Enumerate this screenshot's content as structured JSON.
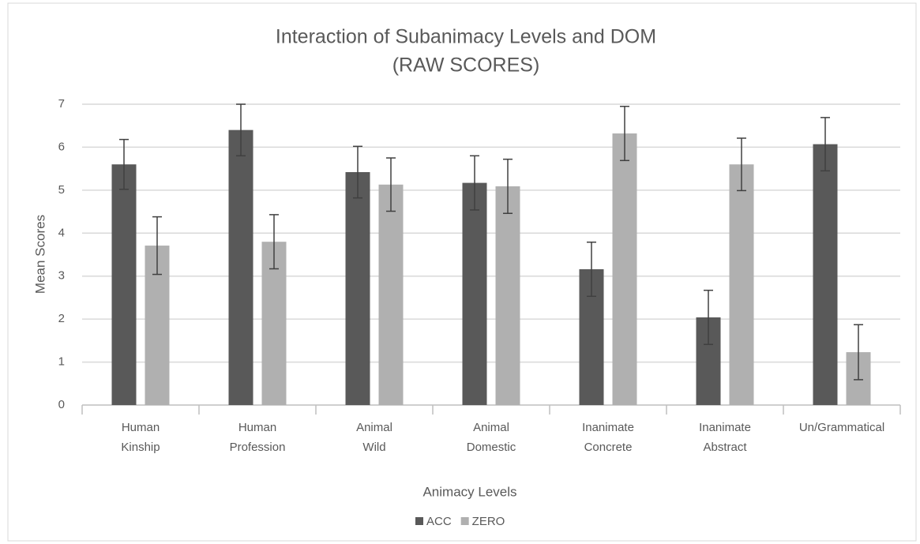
{
  "chart_data": {
    "type": "bar",
    "title": "Interaction of Subanimacy Levels and DOM",
    "subtitle": "(RAW SCORES)",
    "x_label": "Animacy Levels",
    "y_label": "Mean Scores",
    "categories": [
      [
        "Human",
        "Kinship"
      ],
      [
        "Human",
        "Profession"
      ],
      [
        "Animal",
        "Wild"
      ],
      [
        "Animal",
        "Domestic"
      ],
      [
        "Inanimate",
        "Concrete"
      ],
      [
        "Inanimate",
        "Abstract"
      ],
      [
        "Un/Grammatical"
      ]
    ],
    "series": [
      {
        "name": "ACC",
        "color": "#595959",
        "values": [
          5.6,
          6.4,
          5.42,
          5.17,
          3.16,
          2.04,
          6.07
        ],
        "errors": [
          0.58,
          0.6,
          0.6,
          0.63,
          0.63,
          0.63,
          0.62
        ]
      },
      {
        "name": "ZERO",
        "color": "#b0b0b0",
        "values": [
          3.71,
          3.8,
          5.13,
          5.09,
          6.32,
          5.6,
          1.23
        ],
        "errors": [
          0.67,
          0.63,
          0.62,
          0.63,
          0.63,
          0.61,
          0.64
        ]
      }
    ],
    "ylim": [
      0,
      7
    ],
    "yticks": [
      0,
      1,
      2,
      3,
      4,
      5,
      6,
      7
    ],
    "grid": true,
    "legend": "bottom"
  }
}
